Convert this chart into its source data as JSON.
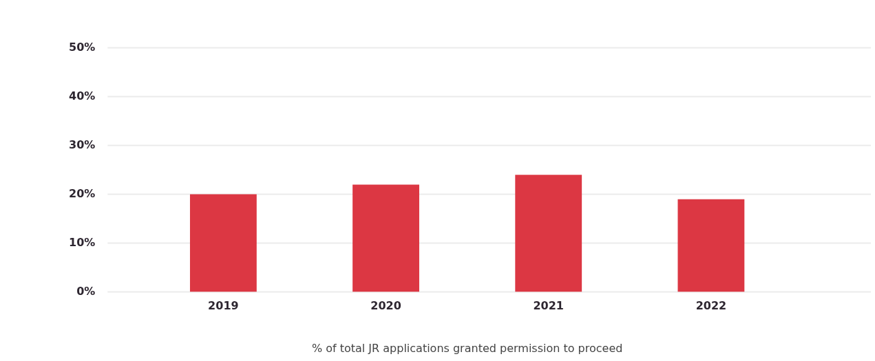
{
  "chart_data": {
    "type": "bar",
    "xlabel": "% of total JR applications granted permission to proceed",
    "categories": [
      "2019",
      "2020",
      "2021",
      "2022"
    ],
    "values": [
      20,
      22,
      24,
      19
    ],
    "color": "#dc3743",
    "ylim": [
      0,
      50
    ],
    "yticks": [
      {
        "value": 0,
        "label": "0%"
      },
      {
        "value": 10,
        "label": "10%"
      },
      {
        "value": 20,
        "label": "20%"
      },
      {
        "value": 30,
        "label": "30%"
      },
      {
        "value": 40,
        "label": "40%"
      },
      {
        "value": 50,
        "label": "50%"
      }
    ],
    "grid": "y",
    "legend": false
  }
}
